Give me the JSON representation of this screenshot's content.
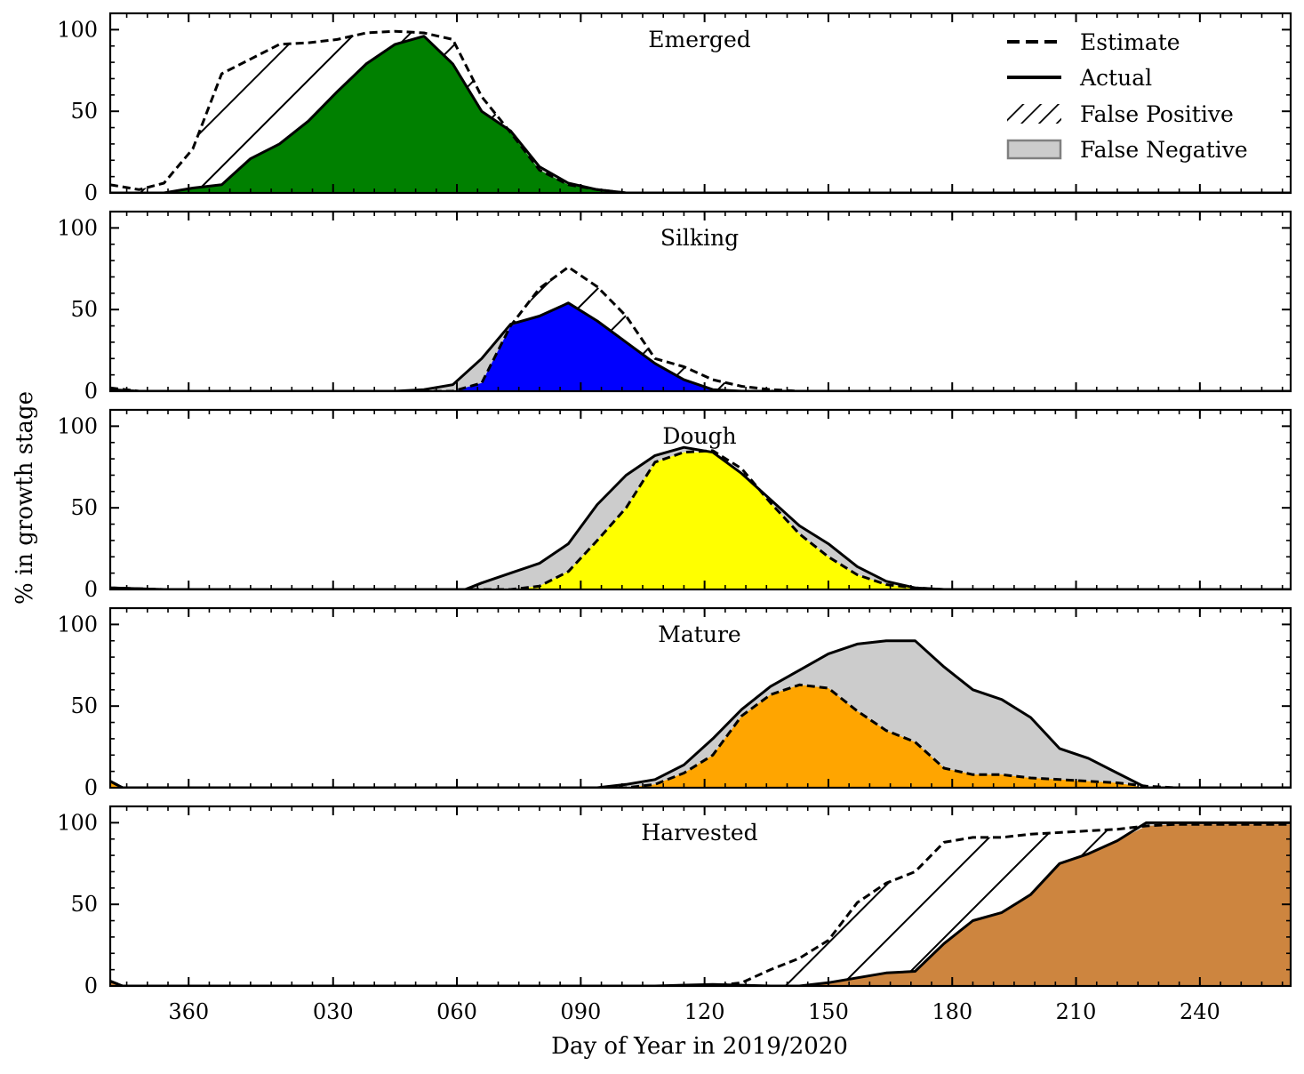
{
  "chart_data": {
    "type": "area",
    "xlabel": "Day of Year in 2019/2020",
    "ylabel": "% in growth stage",
    "xlim": [
      341,
      262
    ],
    "ylim": [
      0,
      110
    ],
    "x_ticks": [
      {
        "value": 360,
        "label": "360"
      },
      {
        "value": 30,
        "label": "030"
      },
      {
        "value": 60,
        "label": "060"
      },
      {
        "value": 90,
        "label": "090"
      },
      {
        "value": 120,
        "label": "120"
      },
      {
        "value": 150,
        "label": "150"
      },
      {
        "value": 180,
        "label": "180"
      },
      {
        "value": 210,
        "label": "210"
      },
      {
        "value": 240,
        "label": "240"
      }
    ],
    "y_ticks": [
      {
        "value": 0,
        "label": "0"
      },
      {
        "value": 50,
        "label": "50"
      },
      {
        "value": 100,
        "label": "100"
      }
    ],
    "legend": {
      "position": "top-right",
      "entries": [
        {
          "label": "Estimate",
          "style": "dashed-line"
        },
        {
          "label": "Actual",
          "style": "solid-line"
        },
        {
          "label": "False Positive",
          "style": "hatch"
        },
        {
          "label": "False Negative",
          "style": "gray-fill"
        }
      ]
    },
    "colors": {
      "false_negative_fill": "#cccccc",
      "line": "#000000"
    },
    "panels": [
      {
        "title": "Emerged",
        "fill_color": "#008000",
        "actual": {
          "x": [
            341,
            348,
            354,
            361,
            368,
            10,
            17,
            24,
            31,
            38,
            45,
            52,
            59,
            66,
            73,
            80,
            87,
            94,
            101,
            108,
            115,
            262
          ],
          "y": [
            0,
            0,
            0,
            3,
            5,
            21,
            30,
            44,
            62,
            79,
            91,
            96,
            79,
            50,
            38,
            16,
            6,
            2,
            0,
            0,
            0,
            0
          ]
        },
        "estimate": {
          "x": [
            341,
            348,
            354,
            361,
            368,
            10,
            17,
            24,
            31,
            38,
            45,
            52,
            59,
            66,
            73,
            80,
            87,
            94,
            101,
            108,
            115,
            262
          ],
          "y": [
            5,
            2,
            6,
            27,
            73,
            82,
            91,
            92,
            94,
            98,
            99,
            98,
            94,
            59,
            37,
            14,
            5,
            2,
            0,
            0,
            0,
            0
          ]
        }
      },
      {
        "title": "Silking",
        "fill_color": "#0000ff",
        "actual": {
          "x": [
            341,
            348,
            354,
            361,
            368,
            10,
            17,
            24,
            31,
            38,
            45,
            52,
            59,
            66,
            73,
            80,
            87,
            94,
            101,
            108,
            115,
            122,
            129,
            136,
            143,
            262
          ],
          "y": [
            1,
            0,
            0,
            0,
            0,
            0,
            0,
            0,
            0,
            0,
            0,
            1,
            4,
            20,
            41,
            46,
            54,
            43,
            30,
            17,
            7,
            1,
            0,
            0,
            0,
            0
          ]
        },
        "estimate": {
          "x": [
            341,
            348,
            354,
            361,
            368,
            10,
            17,
            24,
            31,
            38,
            45,
            52,
            59,
            66,
            73,
            80,
            87,
            94,
            101,
            108,
            115,
            122,
            129,
            136,
            143,
            262
          ],
          "y": [
            2,
            0,
            0,
            0,
            0,
            0,
            0,
            0,
            0,
            0,
            0,
            0,
            0,
            5,
            40,
            63,
            76,
            64,
            46,
            20,
            15,
            7,
            3,
            1,
            0,
            0
          ]
        }
      },
      {
        "title": "Dough",
        "fill_color": "#ffff00",
        "actual": {
          "x": [
            341,
            354,
            10,
            24,
            38,
            52,
            59,
            62,
            66,
            73,
            80,
            87,
            94,
            101,
            108,
            115,
            122,
            129,
            136,
            143,
            150,
            157,
            164,
            171,
            178,
            262
          ],
          "y": [
            1,
            0,
            0,
            0,
            0,
            0,
            0,
            0,
            4,
            10,
            16,
            28,
            52,
            70,
            82,
            87,
            84,
            71,
            55,
            39,
            28,
            14,
            5,
            1,
            0,
            0
          ]
        },
        "estimate": {
          "x": [
            341,
            354,
            10,
            24,
            38,
            52,
            59,
            62,
            66,
            73,
            80,
            87,
            94,
            101,
            108,
            115,
            122,
            129,
            136,
            143,
            150,
            157,
            164,
            171,
            178,
            262
          ],
          "y": [
            1,
            0,
            0,
            0,
            0,
            0,
            0,
            0,
            0,
            0,
            2,
            11,
            30,
            50,
            78,
            84,
            85,
            74,
            53,
            34,
            20,
            9,
            3,
            1,
            0,
            0
          ]
        }
      },
      {
        "title": "Mature",
        "fill_color": "#ffa500",
        "actual": {
          "x": [
            341,
            344,
            10,
            38,
            66,
            94,
            101,
            108,
            115,
            122,
            129,
            136,
            143,
            150,
            157,
            164,
            171,
            178,
            185,
            192,
            199,
            206,
            213,
            220,
            227,
            234,
            241,
            248,
            255,
            262
          ],
          "y": [
            4,
            0,
            0,
            0,
            0,
            0,
            2,
            5,
            14,
            30,
            48,
            62,
            72,
            82,
            88,
            90,
            90,
            74,
            60,
            54,
            43,
            24,
            18,
            9,
            0,
            0,
            0,
            0,
            0,
            0
          ]
        },
        "estimate": {
          "x": [
            341,
            344,
            10,
            38,
            66,
            94,
            101,
            108,
            115,
            122,
            129,
            136,
            143,
            150,
            157,
            164,
            171,
            178,
            185,
            192,
            199,
            206,
            213,
            220,
            227,
            234,
            241,
            248,
            255,
            262
          ],
          "y": [
            4,
            0,
            0,
            0,
            0,
            0,
            0,
            2,
            9,
            20,
            44,
            57,
            63,
            61,
            47,
            35,
            28,
            12,
            8,
            8,
            6,
            5,
            4,
            3,
            1,
            0,
            0,
            0,
            0,
            0
          ]
        }
      },
      {
        "title": "Harvested",
        "fill_color": "#cd853f",
        "actual": {
          "x": [
            341,
            344,
            10,
            38,
            66,
            94,
            108,
            122,
            136,
            143,
            150,
            157,
            164,
            171,
            178,
            185,
            192,
            199,
            206,
            213,
            220,
            227,
            234,
            241,
            248,
            255,
            262
          ],
          "y": [
            3,
            0,
            0,
            0,
            0,
            0,
            0,
            1,
            0,
            0,
            2,
            5,
            8,
            9,
            26,
            40,
            45,
            56,
            75,
            81,
            89,
            100,
            100,
            100,
            100,
            100,
            100
          ]
        },
        "estimate": {
          "x": [
            341,
            344,
            10,
            38,
            66,
            94,
            108,
            122,
            129,
            136,
            143,
            150,
            157,
            164,
            171,
            178,
            185,
            192,
            199,
            206,
            213,
            220,
            227,
            234,
            241,
            248,
            255,
            262
          ],
          "y": [
            3,
            0,
            0,
            0,
            0,
            0,
            0,
            0,
            2,
            10,
            17,
            28,
            51,
            63,
            70,
            88,
            91,
            91,
            93,
            94,
            95,
            96,
            98,
            99,
            99,
            99,
            99,
            99
          ]
        }
      }
    ]
  }
}
